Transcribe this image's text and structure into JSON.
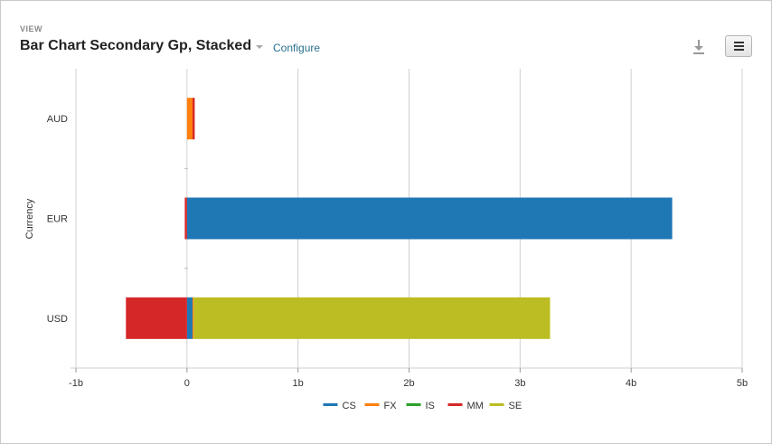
{
  "header": {
    "view_label": "VIEW",
    "title": "Bar Chart Secondary Gp, Stacked",
    "configure_label": "Configure"
  },
  "toolbar": {
    "download_icon": "download-icon",
    "menu_icon": "hamburger-menu-icon"
  },
  "chart_data": {
    "type": "bar",
    "orientation": "horizontal",
    "stacked": true,
    "categories": [
      "AUD",
      "EUR",
      "USD"
    ],
    "ylabel": "Currency",
    "xlabel": "",
    "xlim": [
      -1,
      5
    ],
    "x_ticks": [
      -1,
      0,
      1,
      2,
      3,
      4,
      5
    ],
    "x_tick_labels": [
      "-1b",
      "0",
      "1b",
      "2b",
      "3b",
      "4b",
      "5b"
    ],
    "grid": "vertical",
    "legend_position": "bottom",
    "series": [
      {
        "name": "CS",
        "color": "#1f77b4",
        "values": [
          0,
          4.37,
          0.05
        ]
      },
      {
        "name": "FX",
        "color": "#ff7f0e",
        "values": [
          0.05,
          0,
          0.01
        ]
      },
      {
        "name": "IS",
        "color": "#2ca02c",
        "values": [
          0,
          0,
          0
        ]
      },
      {
        "name": "MM",
        "color": "#d62728",
        "values": [
          0.02,
          -0.02,
          -0.55
        ]
      },
      {
        "name": "SE",
        "color": "#bcbd22",
        "values": [
          0,
          0,
          3.21
        ]
      }
    ]
  }
}
